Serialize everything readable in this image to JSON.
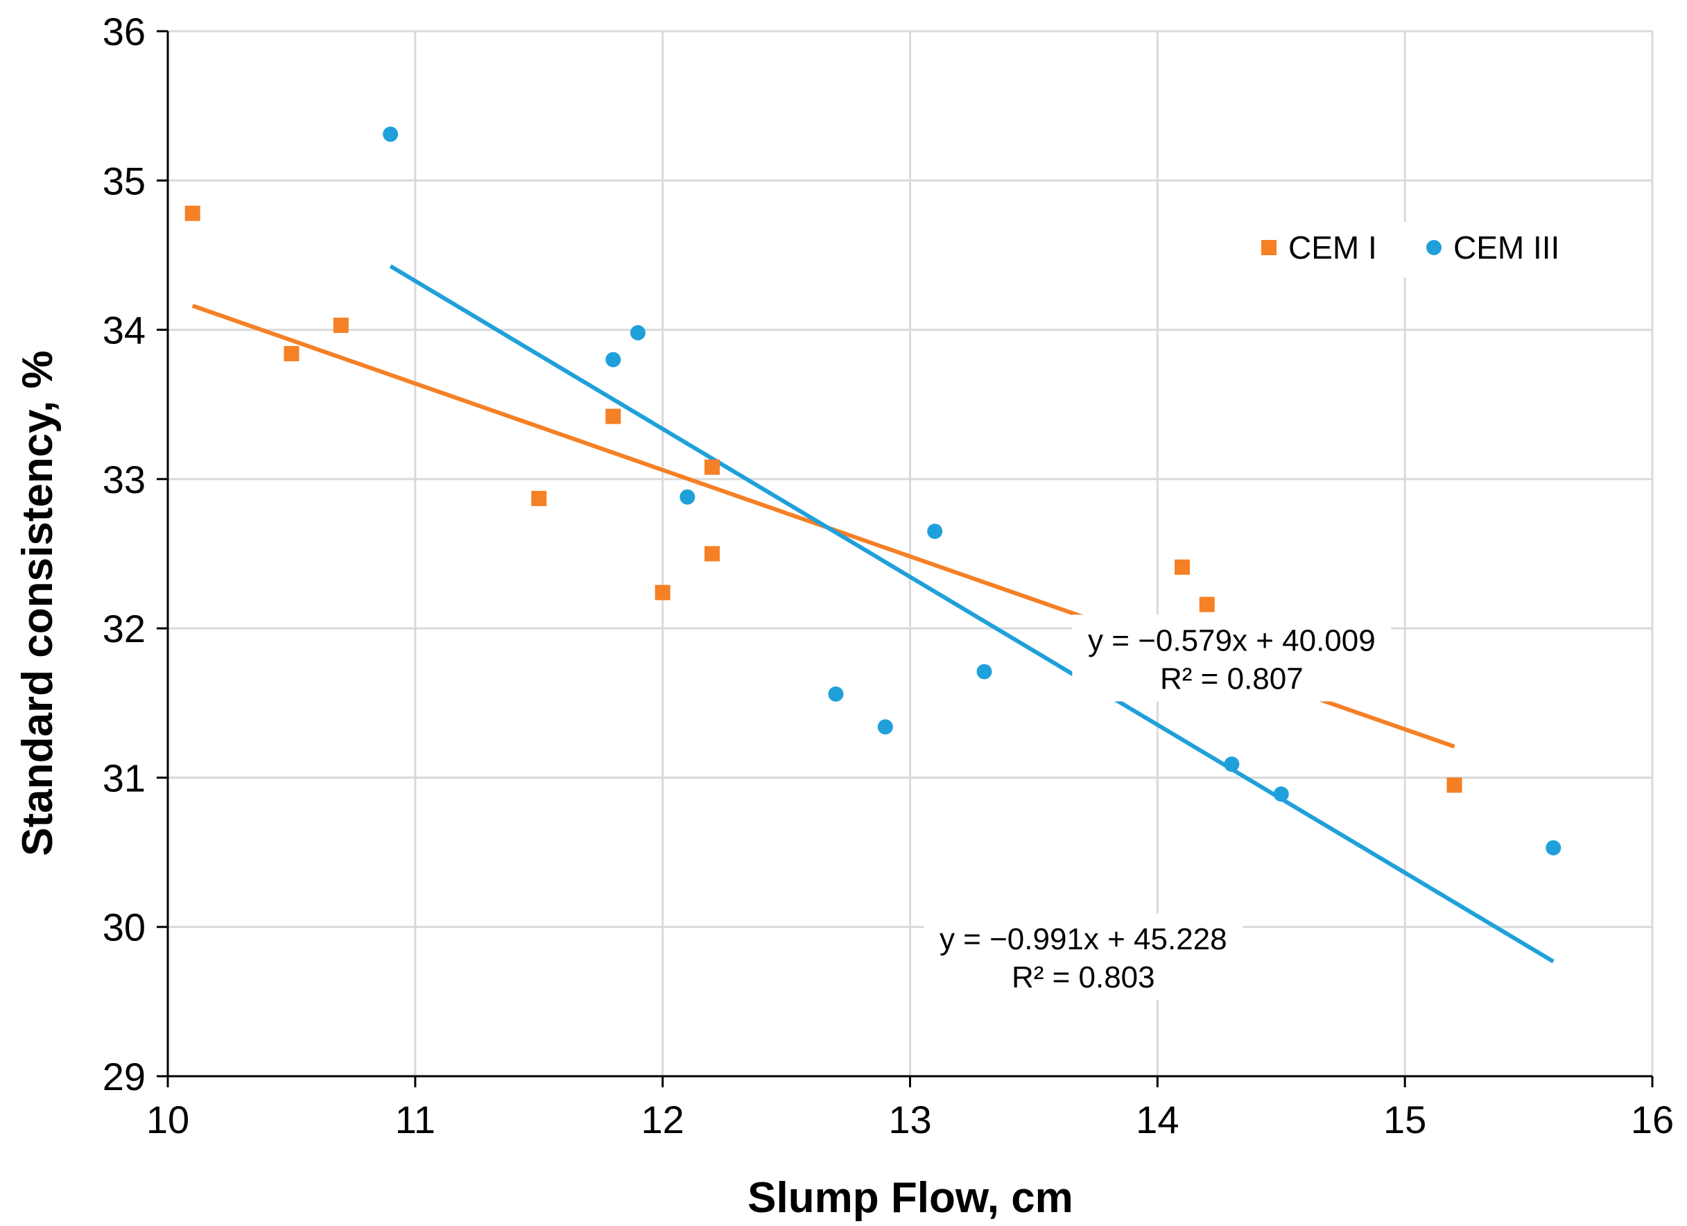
{
  "chart_data": {
    "type": "scatter",
    "title": "",
    "xlabel": "Slump Flow, cm",
    "ylabel": "Standard consistency, %",
    "xlim": [
      10,
      16
    ],
    "ylim": [
      29,
      36
    ],
    "xticks": [
      "10",
      "11",
      "12",
      "13",
      "14",
      "15",
      "16"
    ],
    "yticks": [
      "29",
      "30",
      "31",
      "32",
      "33",
      "34",
      "35",
      "36"
    ],
    "grid": true,
    "legend_position": "top-right",
    "series": [
      {
        "name": "CEM I",
        "marker": "square",
        "color": "#F58025",
        "points": [
          [
            10.1,
            34.78
          ],
          [
            10.5,
            33.84
          ],
          [
            10.7,
            34.03
          ],
          [
            11.5,
            32.87
          ],
          [
            11.8,
            33.42
          ],
          [
            12.0,
            32.24
          ],
          [
            12.2,
            33.08
          ],
          [
            12.2,
            32.5
          ],
          [
            14.1,
            32.41
          ],
          [
            14.2,
            32.16
          ],
          [
            15.2,
            30.95
          ]
        ],
        "trendline": {
          "slope": -0.579,
          "intercept": 40.009,
          "x_range": [
            10.1,
            15.2
          ],
          "equation": "y = −0.579x + 40.009",
          "r2": "R² = 0.807",
          "label_at": [
            14.3,
            31.85
          ]
        }
      },
      {
        "name": "CEM III",
        "marker": "circle",
        "color": "#1FA0DA",
        "points": [
          [
            10.9,
            35.31
          ],
          [
            11.8,
            33.8
          ],
          [
            11.9,
            33.98
          ],
          [
            12.1,
            32.88
          ],
          [
            12.7,
            31.56
          ],
          [
            12.9,
            31.34
          ],
          [
            13.1,
            32.65
          ],
          [
            13.3,
            31.71
          ],
          [
            14.3,
            31.09
          ],
          [
            14.5,
            30.89
          ],
          [
            15.6,
            30.53
          ]
        ],
        "trendline": {
          "slope": -0.991,
          "intercept": 45.228,
          "x_range": [
            10.9,
            15.6
          ],
          "equation": "y = −0.991x + 45.228",
          "r2": "R² = 0.803",
          "label_at": [
            13.7,
            29.85
          ]
        }
      }
    ]
  }
}
